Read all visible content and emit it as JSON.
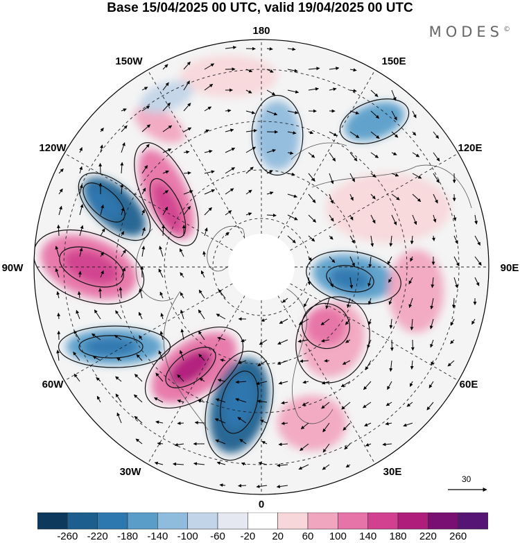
{
  "header": {
    "title": "Base 15/04/2025 00 UTC, valid 19/04/2025 00 UTC"
  },
  "brand": {
    "name": "MODES",
    "mark": "©"
  },
  "map": {
    "projection": "north-polar-stereographic",
    "field": "500 hPa geopotential height anomaly (shaded) with wind vectors",
    "longitude_labels": [
      "180",
      "150E",
      "120E",
      "90E",
      "60E",
      "30E",
      "0",
      "30W",
      "60W",
      "90W",
      "120W",
      "150W"
    ],
    "reference_vector": {
      "value": "30"
    }
  },
  "colorbar": {
    "ticks": [
      "-260",
      "-220",
      "-180",
      "-140",
      "-100",
      "-60",
      "-20",
      "20",
      "60",
      "100",
      "140",
      "180",
      "220",
      "260"
    ],
    "colors": [
      "#0d3a5c",
      "#1c5f8e",
      "#2e78b0",
      "#5a9dc9",
      "#8fbbdc",
      "#c2d4e8",
      "#e6e8f1",
      "#ffffff",
      "#f8d7da",
      "#f1a6c0",
      "#e774a8",
      "#d2418f",
      "#b01e7c",
      "#7a0f72",
      "#561475"
    ]
  }
}
